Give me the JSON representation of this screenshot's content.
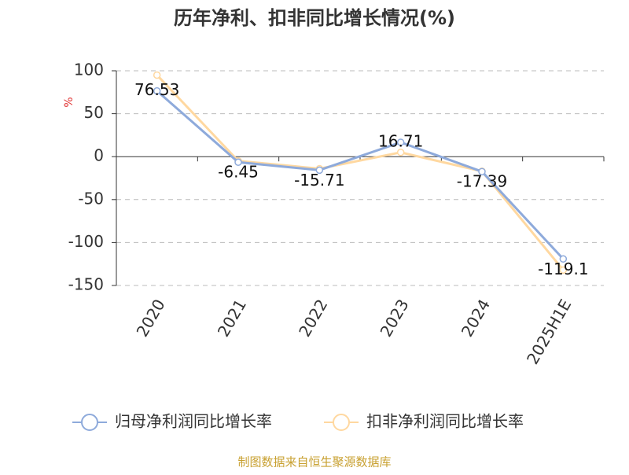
{
  "chart_data": {
    "type": "line",
    "title": "历年净利、扣非同比增长情况(%)",
    "y_label": "%",
    "categories": [
      "2020",
      "2021",
      "2022",
      "2023",
      "2024",
      "2025H1E"
    ],
    "series": [
      {
        "name": "归母净利润同比增长率",
        "color": "#8eaadb",
        "values": [
          76.53,
          -6.45,
          -15.71,
          16.71,
          -17.39,
          -119.1
        ],
        "show_labels": true
      },
      {
        "name": "扣非净利润同比增长率",
        "color": "#ffd8a0",
        "values": [
          95,
          -5,
          -14,
          5,
          -17,
          -132
        ],
        "show_labels": false
      }
    ],
    "ylim": [
      -150,
      100
    ],
    "yticks": [
      -150,
      -100,
      -50,
      0,
      50,
      100
    ],
    "grid": true,
    "source": "制图数据来自恒生聚源数据库"
  }
}
